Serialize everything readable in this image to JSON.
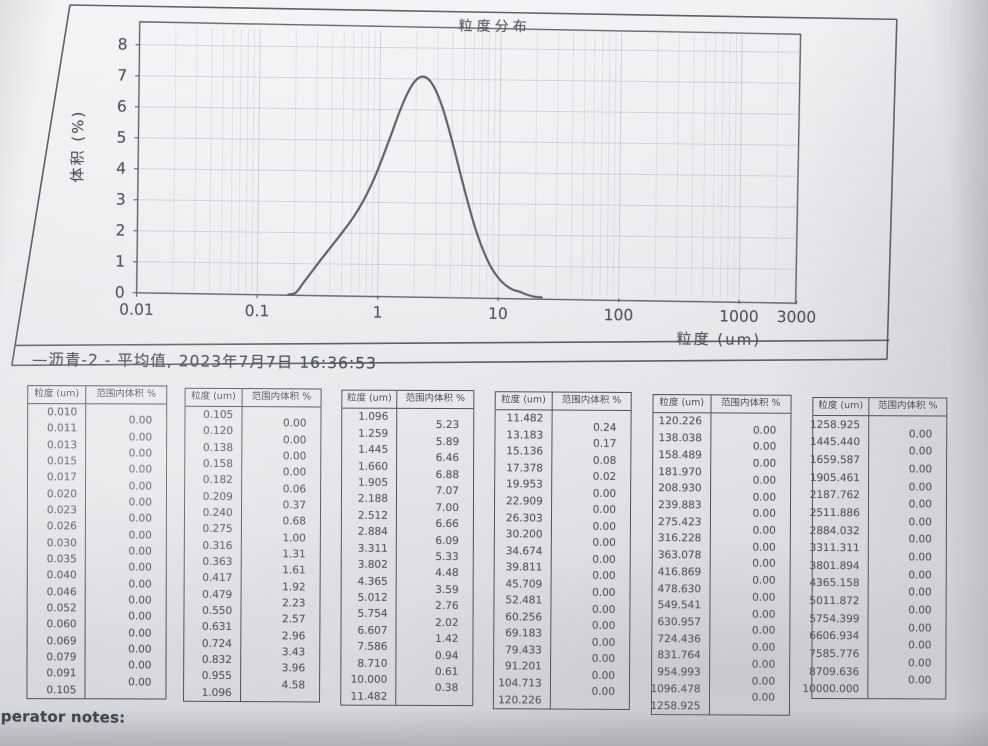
{
  "chart": {
    "title": "粒度分布",
    "ylabel": "体积 (%)",
    "xlabel": "粒度 (um)",
    "legend": "—沥青-2 - 平均值, 2023年7月7日 16:36:53"
  },
  "chart_data": {
    "type": "line",
    "title": "粒度分布",
    "xlabel": "粒度 (um)",
    "ylabel": "体积 (%)",
    "x_scale": "log",
    "xlim": [
      0.01,
      3000
    ],
    "ylim": [
      0,
      8
    ],
    "x_ticks": [
      "0.01",
      "0.1",
      "1",
      "10",
      "100",
      "1000",
      "3000"
    ],
    "y_ticks": [
      0,
      1,
      2,
      3,
      4,
      5,
      6,
      7,
      8
    ],
    "grid": true,
    "legend_position": "below",
    "series": [
      {
        "name": "沥青-2 - 平均值",
        "timestamp": "2023年7月7日 16:36:53",
        "x": [
          0.182,
          0.209,
          0.24,
          0.275,
          0.316,
          0.363,
          0.417,
          0.479,
          0.55,
          0.631,
          0.724,
          0.832,
          0.955,
          1.096,
          1.259,
          1.445,
          1.66,
          1.905,
          2.188,
          2.512,
          2.884,
          3.311,
          3.802,
          4.365,
          5.012,
          5.754,
          6.607,
          7.586,
          8.71,
          10.0,
          11.482,
          13.183,
          15.136,
          17.378,
          19.953,
          22.909
        ],
        "y": [
          0,
          0.06,
          0.37,
          0.68,
          1.0,
          1.31,
          1.61,
          1.92,
          2.23,
          2.57,
          2.96,
          3.43,
          3.96,
          4.58,
          5.23,
          5.89,
          6.46,
          6.88,
          7.07,
          7.0,
          6.66,
          6.09,
          5.33,
          4.48,
          3.59,
          2.76,
          2.02,
          1.42,
          0.94,
          0.61,
          0.38,
          0.24,
          0.17,
          0.08,
          0.02,
          0
        ]
      }
    ]
  },
  "tables": {
    "headers": [
      "粒度 (um)",
      "范围内体积 %"
    ],
    "columns": [
      {
        "sizes": [
          "0.010",
          "0.011",
          "0.013",
          "0.015",
          "0.017",
          "0.020",
          "0.023",
          "0.026",
          "0.030",
          "0.035",
          "0.040",
          "0.046",
          "0.052",
          "0.060",
          "0.069",
          "0.079",
          "0.091",
          "0.105"
        ],
        "values": [
          "0.00",
          "0.00",
          "0.00",
          "0.00",
          "0.00",
          "0.00",
          "0.00",
          "0.00",
          "0.00",
          "0.00",
          "0.00",
          "0.00",
          "0.00",
          "0.00",
          "0.00",
          "0.00",
          "0.00"
        ]
      },
      {
        "sizes": [
          "0.105",
          "0.120",
          "0.138",
          "0.158",
          "0.182",
          "0.209",
          "0.240",
          "0.275",
          "0.316",
          "0.363",
          "0.417",
          "0.479",
          "0.550",
          "0.631",
          "0.724",
          "0.832",
          "0.955",
          "1.096"
        ],
        "values": [
          "0.00",
          "0.00",
          "0.00",
          "0.00",
          "0.06",
          "0.37",
          "0.68",
          "1.00",
          "1.31",
          "1.61",
          "1.92",
          "2.23",
          "2.57",
          "2.96",
          "3.43",
          "3.96",
          "4.58"
        ]
      },
      {
        "sizes": [
          "1.096",
          "1.259",
          "1.445",
          "1.660",
          "1.905",
          "2.188",
          "2.512",
          "2.884",
          "3.311",
          "3.802",
          "4.365",
          "5.012",
          "5.754",
          "6.607",
          "7.586",
          "8.710",
          "10.000",
          "11.482"
        ],
        "values": [
          "5.23",
          "5.89",
          "6.46",
          "6.88",
          "7.07",
          "7.00",
          "6.66",
          "6.09",
          "5.33",
          "4.48",
          "3.59",
          "2.76",
          "2.02",
          "1.42",
          "0.94",
          "0.61",
          "0.38"
        ]
      },
      {
        "sizes": [
          "11.482",
          "13.183",
          "15.136",
          "17.378",
          "19.953",
          "22.909",
          "26.303",
          "30.200",
          "34.674",
          "39.811",
          "45.709",
          "52.481",
          "60.256",
          "69.183",
          "79.433",
          "91.201",
          "104.713",
          "120.226"
        ],
        "values": [
          "0.24",
          "0.17",
          "0.08",
          "0.02",
          "0.00",
          "0.00",
          "0.00",
          "0.00",
          "0.00",
          "0.00",
          "0.00",
          "0.00",
          "0.00",
          "0.00",
          "0.00",
          "0.00",
          "0.00"
        ]
      },
      {
        "sizes": [
          "120.226",
          "138.038",
          "158.489",
          "181.970",
          "208.930",
          "239.883",
          "275.423",
          "316.228",
          "363.078",
          "416.869",
          "478.630",
          "549.541",
          "630.957",
          "724.436",
          "831.764",
          "954.993",
          "1096.478",
          "1258.925"
        ],
        "values": [
          "0.00",
          "0.00",
          "0.00",
          "0.00",
          "0.00",
          "0.00",
          "0.00",
          "0.00",
          "0.00",
          "0.00",
          "0.00",
          "0.00",
          "0.00",
          "0.00",
          "0.00",
          "0.00",
          "0.00"
        ]
      },
      {
        "sizes": [
          "1258.925",
          "1445.440",
          "1659.587",
          "1905.461",
          "2187.762",
          "2511.886",
          "2884.032",
          "3311.311",
          "3801.894",
          "4365.158",
          "5011.872",
          "5754.399",
          "6606.934",
          "7585.776",
          "8709.636",
          "10000.000"
        ],
        "values": [
          "0.00",
          "0.00",
          "0.00",
          "0.00",
          "0.00",
          "0.00",
          "0.00",
          "0.00",
          "0.00",
          "0.00",
          "0.00",
          "0.00",
          "0.00",
          "0.00",
          "0.00"
        ]
      }
    ]
  },
  "footer": {
    "operator_notes": "Operator notes:"
  }
}
